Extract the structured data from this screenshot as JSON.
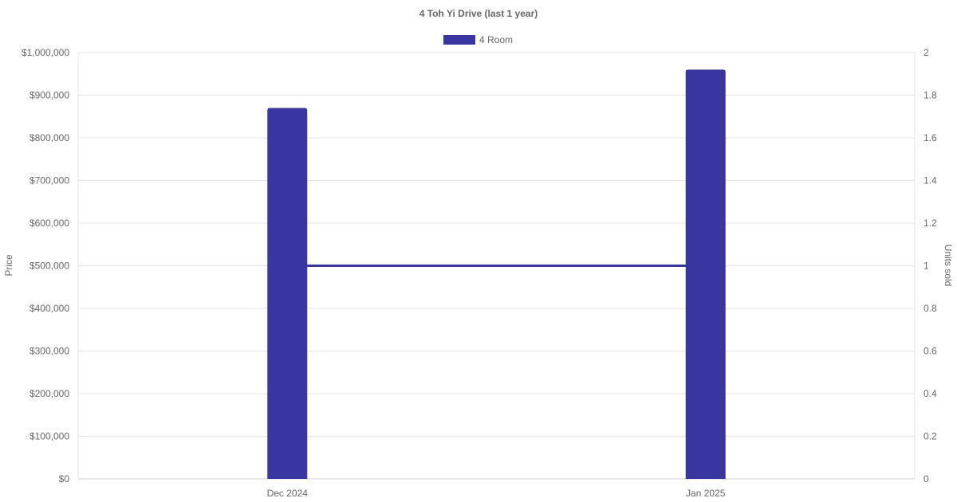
{
  "chart_data": {
    "type": "bar",
    "title": "4 Toh Yi Drive (last 1 year)",
    "categories": [
      "Dec 2024",
      "Jan 2025"
    ],
    "series": [
      {
        "name": "4 Room",
        "type": "bar",
        "axis": "left",
        "values": [
          870000,
          960000
        ],
        "color": "#3a36a0"
      },
      {
        "type": "line",
        "axis": "right",
        "values": [
          1,
          1
        ],
        "color": "#3a36a0"
      }
    ],
    "ylabel": "Price",
    "y2label": "Units sold",
    "ylim": [
      0,
      1000000
    ],
    "y2lim": [
      0,
      2
    ],
    "yticks": [
      "$0",
      "$100,000",
      "$200,000",
      "$300,000",
      "$400,000",
      "$500,000",
      "$600,000",
      "$700,000",
      "$800,000",
      "$900,000",
      "$1,000,000"
    ],
    "y2ticks": [
      "0",
      "0.2",
      "0.4",
      "0.6",
      "0.8",
      "1",
      "1.2",
      "1.4",
      "1.6",
      "1.8",
      "2"
    ],
    "grid": true,
    "legend": "top"
  }
}
